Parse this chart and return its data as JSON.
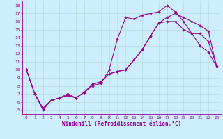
{
  "xlabel": "Windchill (Refroidissement éolien,°C)",
  "xlim": [
    -0.5,
    23.5
  ],
  "ylim": [
    4.5,
    18.5
  ],
  "xticks": [
    0,
    1,
    2,
    3,
    4,
    5,
    6,
    7,
    8,
    9,
    10,
    11,
    12,
    13,
    14,
    15,
    16,
    17,
    18,
    19,
    20,
    21,
    22,
    23
  ],
  "yticks": [
    5,
    6,
    7,
    8,
    9,
    10,
    11,
    12,
    13,
    14,
    15,
    16,
    17,
    18
  ],
  "bg_color": "#cceeff",
  "line_color": "#990099",
  "grid_color": "#bbdddd",
  "curve1_x": [
    0,
    1,
    2,
    3,
    4,
    5,
    6,
    7,
    8,
    9,
    10,
    11,
    12,
    13,
    14,
    15,
    16,
    17,
    18,
    19,
    20,
    21,
    22,
    23
  ],
  "curve1_y": [
    10.0,
    7.0,
    5.0,
    6.2,
    6.5,
    7.0,
    6.5,
    7.2,
    8.0,
    8.3,
    10.0,
    13.8,
    16.5,
    16.3,
    16.8,
    17.0,
    17.2,
    18.0,
    17.2,
    16.0,
    14.5,
    13.0,
    12.2,
    10.4
  ],
  "curve2_x": [
    0,
    1,
    2,
    3,
    4,
    5,
    6,
    7,
    8,
    9,
    10,
    11,
    12,
    13,
    14,
    15,
    16,
    17,
    18,
    19,
    20,
    21,
    22,
    23
  ],
  "curve2_y": [
    10.0,
    7.0,
    5.2,
    6.2,
    6.5,
    6.8,
    6.5,
    7.2,
    8.2,
    8.5,
    9.5,
    9.8,
    10.0,
    11.2,
    12.5,
    14.2,
    15.8,
    16.5,
    17.0,
    16.5,
    16.0,
    15.5,
    14.8,
    10.4
  ],
  "curve3_x": [
    0,
    1,
    2,
    3,
    4,
    5,
    6,
    7,
    8,
    9,
    10,
    11,
    12,
    13,
    14,
    15,
    16,
    17,
    18,
    19,
    20,
    21,
    22,
    23
  ],
  "curve3_y": [
    10.0,
    7.0,
    5.2,
    6.2,
    6.5,
    6.8,
    6.5,
    7.2,
    8.2,
    8.5,
    9.5,
    9.8,
    10.0,
    11.2,
    12.5,
    14.2,
    15.8,
    16.0,
    16.0,
    15.0,
    14.5,
    14.5,
    13.5,
    10.5
  ],
  "marker": "D",
  "markersize": 1.8,
  "linewidth": 0.8,
  "tick_fontsize": 4.5,
  "label_fontsize": 5.5
}
